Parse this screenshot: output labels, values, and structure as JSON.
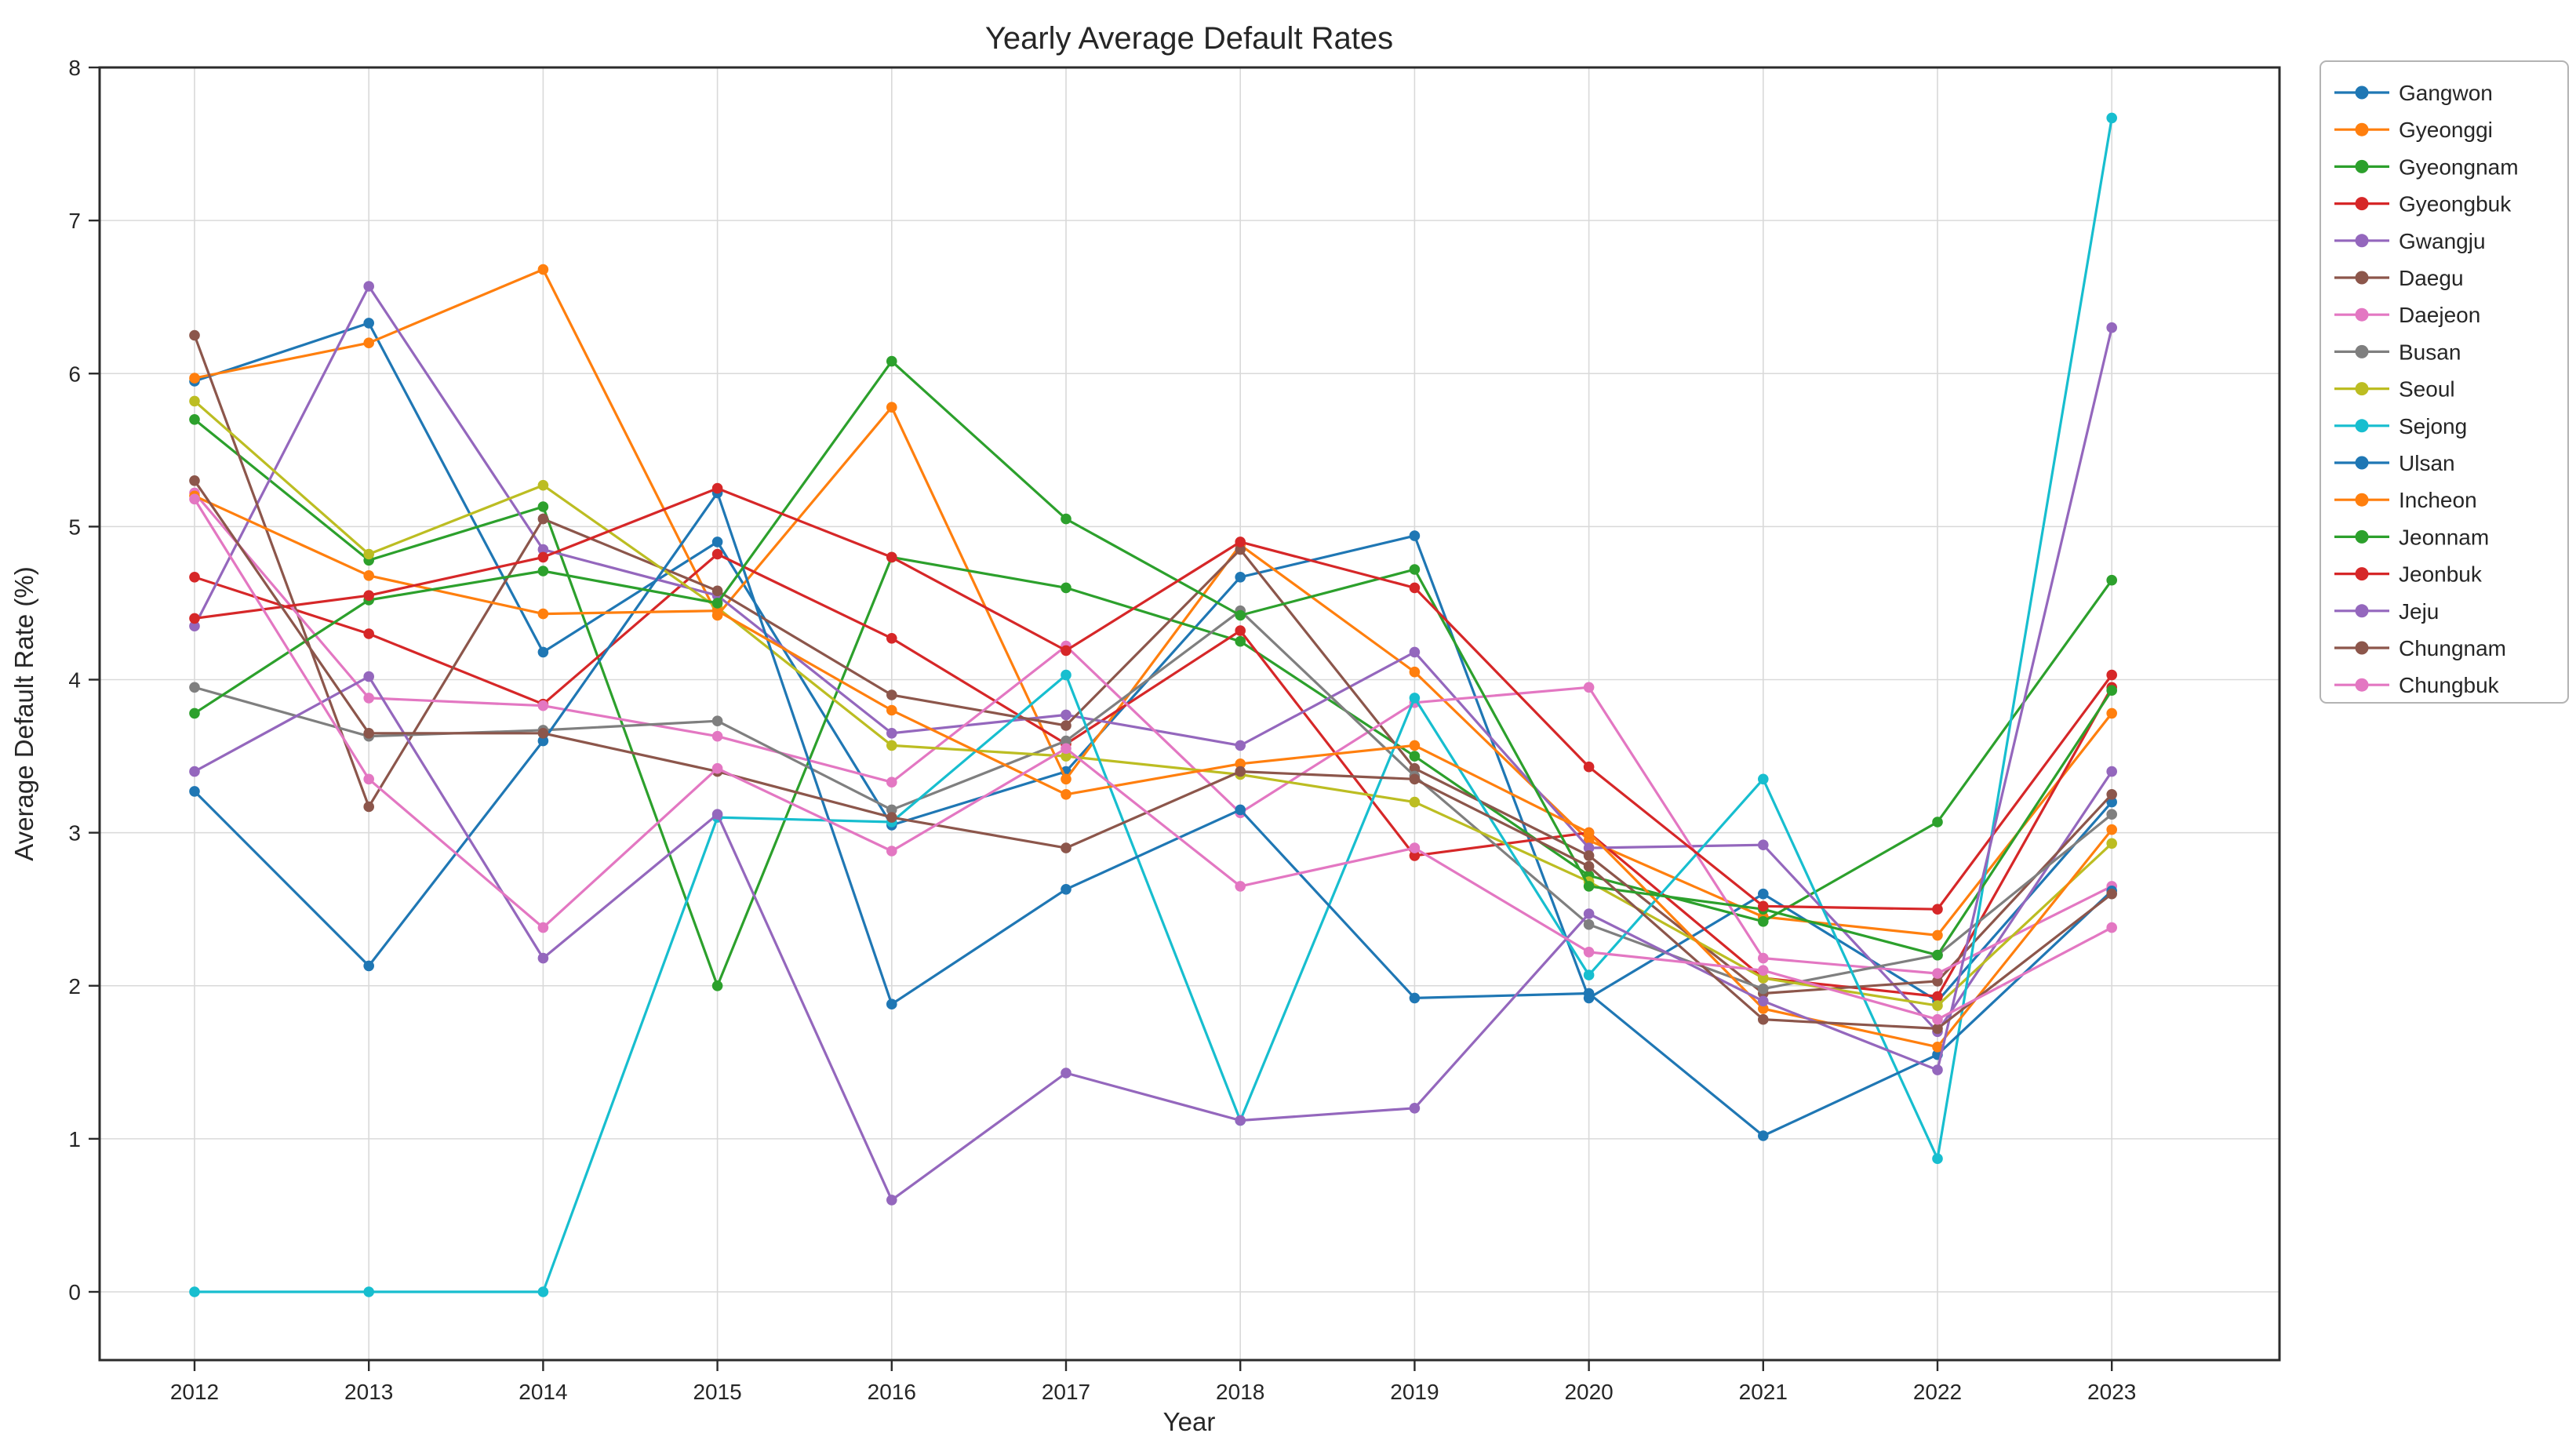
{
  "page": {
    "title": "Yearly Average Default Rates"
  },
  "chart_data": {
    "type": "line",
    "title": "Yearly Average Default Rates",
    "xlabel": "Year",
    "ylabel": "Average Default Rate (%)",
    "x": [
      2012,
      2013,
      2014,
      2015,
      2016,
      2017,
      2018,
      2019,
      2020,
      2021,
      2022,
      2023
    ],
    "yticks": [
      0,
      1,
      2,
      3,
      4,
      5,
      6,
      7,
      8
    ],
    "ylim": [
      0,
      8
    ],
    "grid": true,
    "legend_position": "right",
    "series": [
      {
        "name": "Gangwon",
        "label": "Gangwon",
        "color": "#1f77b4",
        "values": [
          5.95,
          6.33,
          4.18,
          4.9,
          3.05,
          3.4,
          4.67,
          4.94,
          1.92,
          2.6,
          1.9,
          3.2
        ]
      },
      {
        "name": "Gyeonggi",
        "label": "Gyeonggi",
        "color": "#ff7f0e",
        "values": [
          5.97,
          6.2,
          6.68,
          4.42,
          5.78,
          3.35,
          4.88,
          4.05,
          2.95,
          2.45,
          2.33,
          3.78
        ]
      },
      {
        "name": "Gyeongnam",
        "label": "Gyeongnam",
        "color": "#2ca02c",
        "values": [
          5.7,
          4.78,
          5.13,
          2.0,
          4.8,
          4.6,
          4.25,
          3.5,
          2.72,
          2.42,
          3.07,
          4.65
        ]
      },
      {
        "name": "Gyeongbuk",
        "label": "Gyeongbuk",
        "color": "#d62728",
        "values": [
          4.67,
          4.3,
          3.84,
          4.82,
          4.27,
          3.58,
          4.32,
          2.85,
          3.0,
          2.05,
          1.93,
          3.95
        ]
      },
      {
        "name": "Gwangju",
        "label": "Gwangju",
        "color": "#9467bd",
        "values": [
          4.35,
          6.57,
          4.85,
          4.55,
          3.65,
          3.77,
          3.57,
          4.18,
          2.9,
          2.92,
          1.7,
          3.4
        ]
      },
      {
        "name": "Daegu",
        "label": "Daegu",
        "color": "#8c564b",
        "values": [
          6.25,
          3.17,
          5.05,
          4.58,
          3.9,
          3.7,
          4.85,
          3.42,
          2.85,
          1.95,
          2.03,
          3.25
        ]
      },
      {
        "name": "Daejeon",
        "label": "Daejeon",
        "color": "#e377c2",
        "values": [
          5.22,
          3.88,
          3.83,
          3.63,
          3.33,
          4.22,
          3.13,
          3.85,
          3.95,
          2.18,
          2.08,
          2.65
        ]
      },
      {
        "name": "Busan",
        "label": "Busan",
        "color": "#7f7f7f",
        "values": [
          3.95,
          3.63,
          3.67,
          3.73,
          3.15,
          3.6,
          4.45,
          3.37,
          2.4,
          1.98,
          2.2,
          3.12
        ]
      },
      {
        "name": "Seoul",
        "label": "Seoul",
        "color": "#bcbd22",
        "values": [
          5.82,
          4.82,
          5.27,
          4.47,
          3.57,
          3.5,
          3.38,
          3.2,
          2.68,
          2.05,
          1.87,
          2.93
        ]
      },
      {
        "name": "Sejong",
        "label": "Sejong",
        "color": "#17becf",
        "values": [
          0.0,
          0.0,
          0.0,
          3.1,
          3.07,
          4.03,
          1.12,
          3.88,
          2.07,
          3.35,
          0.87,
          7.67
        ]
      },
      {
        "name": "Ulsan",
        "label": " Ulsan",
        "color": "#1f77b4",
        "values": [
          3.27,
          2.13,
          3.6,
          5.22,
          1.88,
          2.63,
          3.15,
          1.92,
          1.95,
          1.02,
          1.55,
          2.62
        ]
      },
      {
        "name": "Incheon",
        "label": "Incheon",
        "color": "#ff7f0e",
        "values": [
          5.2,
          4.68,
          4.43,
          4.45,
          3.8,
          3.25,
          3.45,
          3.57,
          3.0,
          1.85,
          1.6,
          3.02
        ]
      },
      {
        "name": "Jeonnam",
        "label": "Jeonnam",
        "color": "#2ca02c",
        "values": [
          3.78,
          4.52,
          4.71,
          4.5,
          6.08,
          5.05,
          4.42,
          4.72,
          2.65,
          2.5,
          2.2,
          3.93
        ]
      },
      {
        "name": "Jeonbuk",
        "label": " Jeonbuk",
        "color": "#d62728",
        "values": [
          4.4,
          4.55,
          4.8,
          5.25,
          4.8,
          4.19,
          4.9,
          4.6,
          3.43,
          2.52,
          2.5,
          4.03
        ]
      },
      {
        "name": "Jeju",
        "label": "Jeju",
        "color": "#9467bd",
        "values": [
          3.4,
          4.02,
          2.18,
          3.12,
          0.6,
          1.43,
          1.12,
          1.2,
          2.47,
          1.9,
          1.45,
          6.3
        ]
      },
      {
        "name": "Chungnam",
        "label": "Chungnam",
        "color": "#8c564b",
        "values": [
          5.3,
          3.65,
          3.65,
          3.4,
          3.1,
          2.9,
          3.4,
          3.35,
          2.78,
          1.78,
          1.72,
          2.6
        ]
      },
      {
        "name": "Chungbuk",
        "label": "Chungbuk",
        "color": "#e377c2",
        "values": [
          5.18,
          3.35,
          2.38,
          3.42,
          2.88,
          3.55,
          2.65,
          2.9,
          2.22,
          2.1,
          1.78,
          2.38
        ]
      }
    ]
  }
}
